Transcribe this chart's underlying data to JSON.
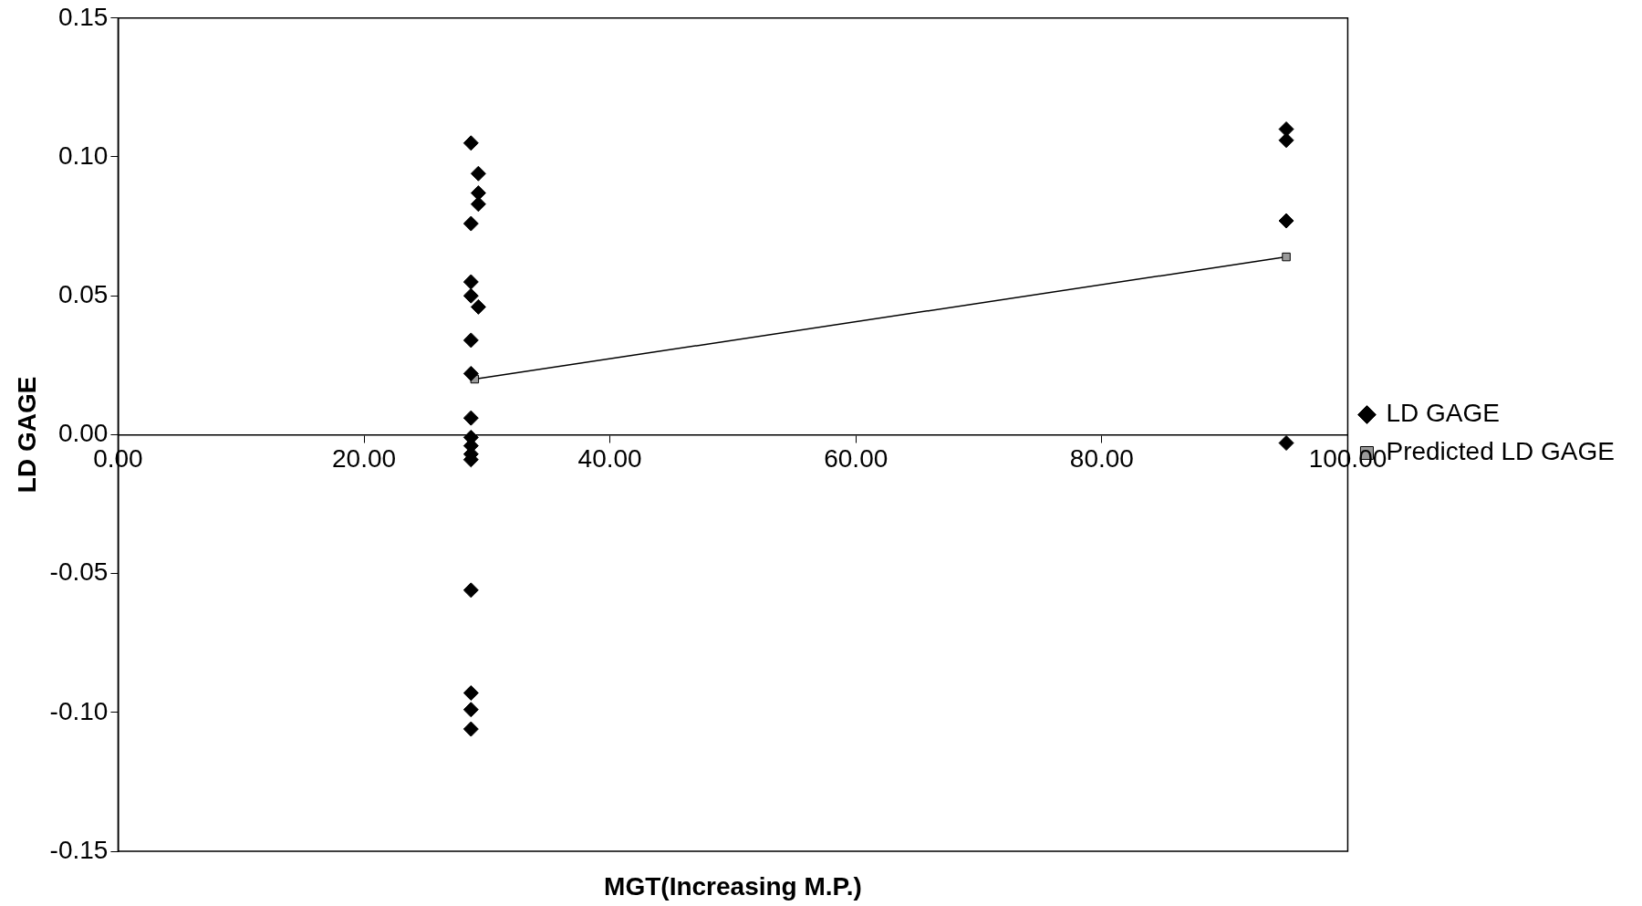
{
  "chart_data": {
    "type": "scatter",
    "xlabel": "MGT(Increasing M.P.)",
    "ylabel": "LD GAGE",
    "xlim": [
      0,
      100
    ],
    "xticks": [
      {
        "value": 0,
        "label": "0.00"
      },
      {
        "value": 20,
        "label": "20.00"
      },
      {
        "value": 40,
        "label": "40.00"
      },
      {
        "value": 60,
        "label": "60.00"
      },
      {
        "value": 80,
        "label": "80.00"
      },
      {
        "value": 100,
        "label": "100.00"
      }
    ],
    "ylim": [
      -0.15,
      0.15
    ],
    "yticks": [
      {
        "value": -0.15,
        "label": "-0.15"
      },
      {
        "value": -0.1,
        "label": "-0.10"
      },
      {
        "value": -0.05,
        "label": "-0.05"
      },
      {
        "value": 0,
        "label": "0.00"
      },
      {
        "value": 0.05,
        "label": "0.05"
      },
      {
        "value": 0.1,
        "label": "0.10"
      },
      {
        "value": 0.15,
        "label": "0.15"
      }
    ],
    "grid": false,
    "legend": "right",
    "series": [
      {
        "name": "LD GAGE",
        "type": "scatter",
        "marker": "diamond",
        "color": "#000000",
        "x": [
          28.7,
          29.3,
          29.3,
          29.3,
          28.7,
          28.7,
          28.7,
          29.3,
          28.7,
          28.7,
          28.7,
          28.7,
          28.7,
          28.7,
          28.7,
          28.7,
          28.7,
          28.7,
          28.7,
          95,
          95,
          95,
          95
        ],
        "values": [
          0.105,
          0.094,
          0.087,
          0.083,
          0.076,
          0.055,
          0.05,
          0.046,
          0.034,
          0.022,
          0.006,
          -0.001,
          -0.004,
          -0.007,
          -0.009,
          -0.056,
          -0.093,
          -0.099,
          -0.106,
          0.11,
          0.106,
          0.077,
          -0.003
        ]
      },
      {
        "name": "Predicted LD GAGE",
        "type": "line",
        "marker": "square",
        "color": "#000000",
        "x": [
          29,
          95
        ],
        "values": [
          0.02,
          0.064
        ]
      }
    ]
  }
}
